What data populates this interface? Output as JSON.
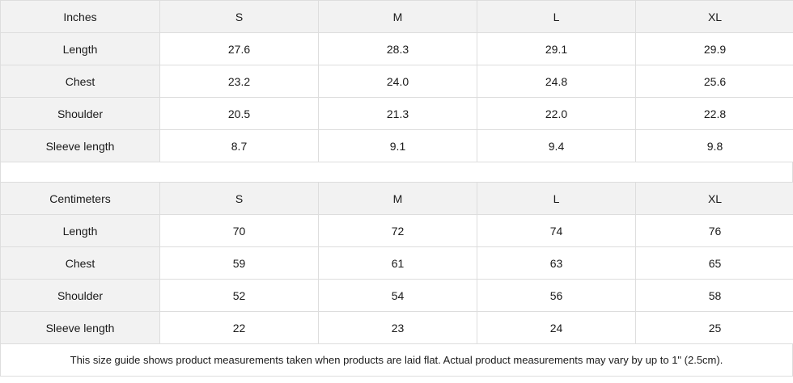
{
  "inches_table": {
    "unit_label": "Inches",
    "sizes": [
      "S",
      "M",
      "L",
      "XL"
    ],
    "rows": [
      {
        "label": "Length",
        "values": [
          "27.6",
          "28.3",
          "29.1",
          "29.9"
        ]
      },
      {
        "label": "Chest",
        "values": [
          "23.2",
          "24.0",
          "24.8",
          "25.6"
        ]
      },
      {
        "label": "Shoulder",
        "values": [
          "20.5",
          "21.3",
          "22.0",
          "22.8"
        ]
      },
      {
        "label": "Sleeve length",
        "values": [
          "8.7",
          "9.1",
          "9.4",
          "9.8"
        ]
      }
    ]
  },
  "centimeters_table": {
    "unit_label": "Centimeters",
    "sizes": [
      "S",
      "M",
      "L",
      "XL"
    ],
    "rows": [
      {
        "label": "Length",
        "values": [
          "70",
          "72",
          "74",
          "76"
        ]
      },
      {
        "label": "Chest",
        "values": [
          "59",
          "61",
          "63",
          "65"
        ]
      },
      {
        "label": "Shoulder",
        "values": [
          "52",
          "54",
          "56",
          "58"
        ]
      },
      {
        "label": "Sleeve length",
        "values": [
          "22",
          "23",
          "24",
          "25"
        ]
      }
    ]
  },
  "footnote": "This size guide shows product measurements taken when products are laid flat.  Actual product measurements may vary by up to 1\" (2.5cm)."
}
